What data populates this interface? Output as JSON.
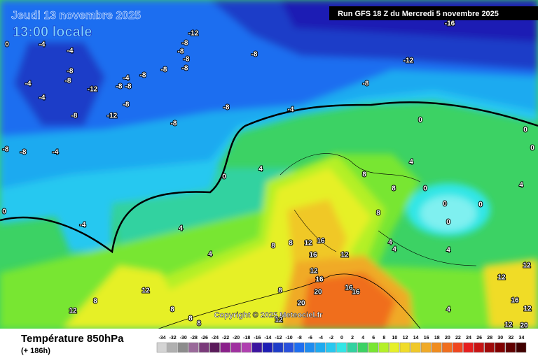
{
  "header": {
    "date": "Jeudi 13 novembre 2025",
    "time": "13:00 locale",
    "run": "Run GFS 18 Z du Mercredi 5 novembre 2025"
  },
  "copyright": "Copyright © 2025 Meteociel.fr",
  "footer": {
    "title": "Température 850hPa",
    "lead": "(+ 186h)"
  },
  "legend": {
    "values": [
      -34,
      -32,
      -30,
      -28,
      -26,
      -24,
      -22,
      -20,
      -18,
      -16,
      -14,
      -12,
      -10,
      -8,
      -6,
      -4,
      -2,
      0,
      2,
      4,
      6,
      8,
      10,
      12,
      14,
      16,
      18,
      20,
      22,
      24,
      26,
      28,
      30,
      32,
      34
    ],
    "colors": [
      "#d4d4d4",
      "#b0b0b0",
      "#8c8c8c",
      "#9a6a9a",
      "#7a3a7a",
      "#5a1a5a",
      "#8a208a",
      "#a030a0",
      "#b040b0",
      "#3c14a0",
      "#1e1eb4",
      "#1e3cc8",
      "#2850dc",
      "#1e6ef0",
      "#1e8cf0",
      "#1eaaf0",
      "#28c8f0",
      "#32e6e6",
      "#32d2a0",
      "#3cd264",
      "#78e632",
      "#b4f028",
      "#e6f028",
      "#f0dc28",
      "#f0c828",
      "#f0aa28",
      "#f08c1e",
      "#f06e1e",
      "#f0461e",
      "#e61e1e",
      "#c81414",
      "#a00a0a",
      "#800000",
      "#600000",
      "#400000"
    ]
  },
  "map_labels": [
    -16,
    -12,
    -4,
    -4,
    0,
    -8,
    -8,
    -8,
    -8,
    -12,
    -8,
    -8,
    -8,
    -4,
    -8,
    -8,
    -8,
    -12,
    -8,
    -4,
    -4,
    -8,
    -8,
    -8,
    -8,
    -12,
    -4,
    -8,
    -8,
    -8,
    -4,
    0,
    0,
    0,
    4,
    0,
    4,
    8,
    8,
    0,
    0,
    0,
    0,
    4,
    0,
    -4,
    4,
    8,
    4,
    8,
    8,
    12,
    16,
    12,
    4,
    4,
    4,
    12,
    12,
    16,
    12,
    16,
    20,
    16,
    16,
    20,
    12,
    8,
    12,
    8,
    8,
    8,
    8,
    16,
    12,
    20,
    12,
    12,
    4
  ]
}
